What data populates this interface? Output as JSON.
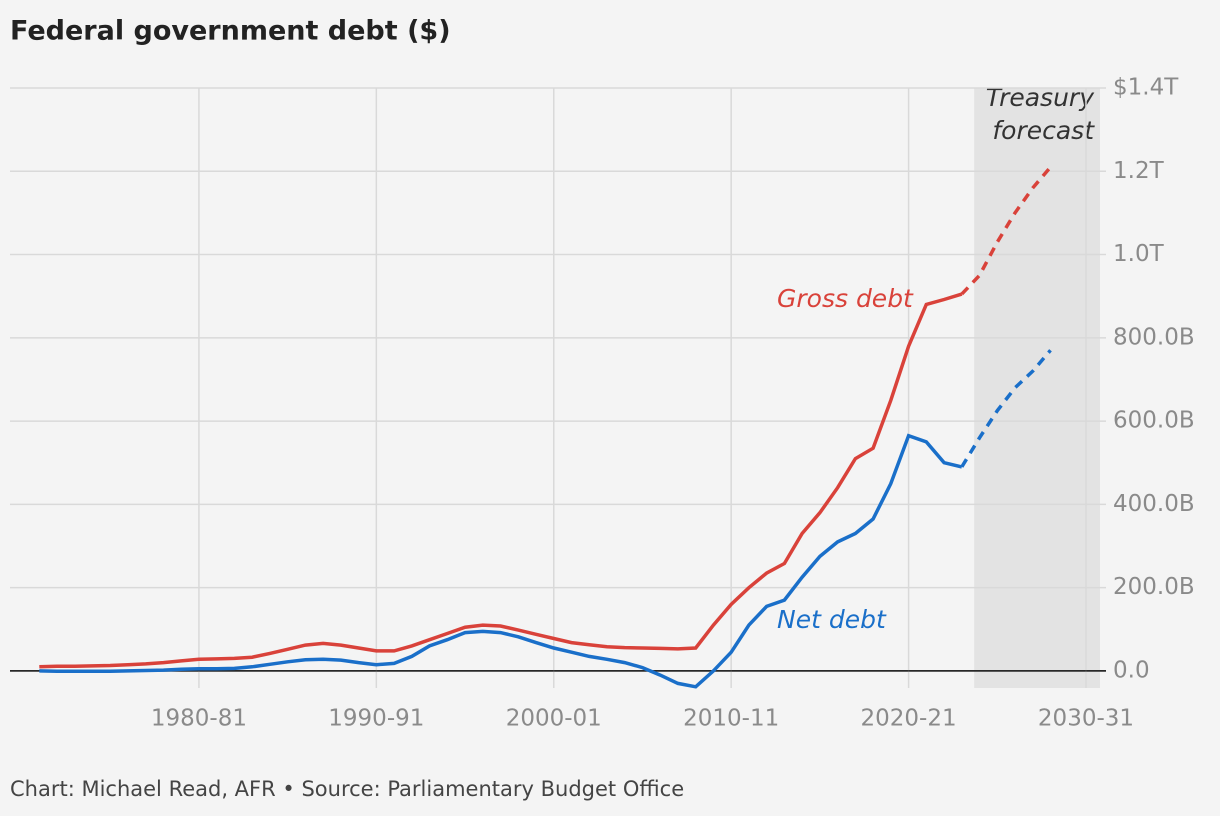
{
  "chart_data": {
    "type": "line",
    "title": "Federal government debt ($)",
    "source": "Chart: Michael Read, AFR • Source: Parliamentary Budget Office",
    "x": [
      1971,
      1972,
      1973,
      1974,
      1975,
      1976,
      1977,
      1978,
      1979,
      1980,
      1981,
      1982,
      1983,
      1984,
      1985,
      1986,
      1987,
      1988,
      1989,
      1990,
      1991,
      1992,
      1993,
      1994,
      1995,
      1996,
      1997,
      1998,
      1999,
      2000,
      2001,
      2002,
      2003,
      2004,
      2005,
      2006,
      2007,
      2008,
      2009,
      2010,
      2011,
      2012,
      2013,
      2014,
      2015,
      2016,
      2017,
      2018,
      2019,
      2020,
      2021,
      2022,
      2023,
      2024,
      2025,
      2026,
      2027,
      2028
    ],
    "series": [
      {
        "name": "Gross debt",
        "color": "#d9423a",
        "dashed": false,
        "values": [
          10,
          11,
          11,
          12,
          13,
          15,
          17,
          20,
          24,
          28,
          29,
          30,
          33,
          42,
          52,
          62,
          66,
          62,
          55,
          48,
          48,
          60,
          75,
          90,
          105,
          110,
          108,
          98,
          88,
          78,
          68,
          63,
          58,
          56,
          55,
          54,
          53,
          55,
          110,
          160,
          200,
          235,
          258,
          330,
          380,
          440,
          510,
          535,
          650,
          780,
          880,
          892,
          905,
          null,
          null,
          null,
          null,
          null
        ]
      },
      {
        "color": "#d9423a",
        "dashed": true,
        "values": [
          null,
          null,
          null,
          null,
          null,
          null,
          null,
          null,
          null,
          null,
          null,
          null,
          null,
          null,
          null,
          null,
          null,
          null,
          null,
          null,
          null,
          null,
          null,
          null,
          null,
          null,
          null,
          null,
          null,
          null,
          null,
          null,
          null,
          null,
          null,
          null,
          null,
          null,
          null,
          null,
          null,
          null,
          null,
          null,
          null,
          null,
          null,
          null,
          null,
          null,
          null,
          null,
          905,
          950,
          1030,
          1100,
          1160,
          1210
        ]
      },
      {
        "name": "Net debt",
        "color": "#1a6fc9",
        "dashed": false,
        "values": [
          0,
          -1,
          -1,
          -1,
          -1,
          0,
          1,
          2,
          4,
          5,
          5,
          6,
          10,
          16,
          22,
          27,
          28,
          26,
          20,
          15,
          18,
          35,
          60,
          75,
          92,
          95,
          92,
          82,
          68,
          55,
          45,
          35,
          28,
          20,
          8,
          -10,
          -30,
          -38,
          0,
          45,
          110,
          155,
          170,
          225,
          275,
          310,
          330,
          365,
          450,
          565,
          550,
          500,
          490,
          null,
          null,
          null,
          null,
          null
        ]
      },
      {
        "color": "#1a6fc9",
        "dashed": true,
        "values": [
          null,
          null,
          null,
          null,
          null,
          null,
          null,
          null,
          null,
          null,
          null,
          null,
          null,
          null,
          null,
          null,
          null,
          null,
          null,
          null,
          null,
          null,
          null,
          null,
          null,
          null,
          null,
          null,
          null,
          null,
          null,
          null,
          null,
          null,
          null,
          null,
          null,
          null,
          null,
          null,
          null,
          null,
          null,
          null,
          null,
          null,
          null,
          null,
          null,
          null,
          null,
          null,
          490,
          560,
          625,
          680,
          720,
          770
        ]
      }
    ],
    "xlim": [
      1969.35,
      2030.79
    ],
    "ylim": [
      -41,
      1400
    ],
    "xticks": [
      {
        "value": 1980,
        "label": "1980-81"
      },
      {
        "value": 1990,
        "label": "1990-91"
      },
      {
        "value": 2000,
        "label": "2000-01"
      },
      {
        "value": 2010,
        "label": "2010-11"
      },
      {
        "value": 2020,
        "label": "2020-21"
      },
      {
        "value": 2030,
        "label": "2030-31"
      }
    ],
    "yticks": [
      {
        "value": 0,
        "label": "0.0"
      },
      {
        "value": 200,
        "label": "200.0B"
      },
      {
        "value": 400,
        "label": "400.0B"
      },
      {
        "value": 600,
        "label": "600.0B"
      },
      {
        "value": 800,
        "label": "800.0B"
      },
      {
        "value": 1000,
        "label": "1.0T"
      },
      {
        "value": 1200,
        "label": "1.2T"
      },
      {
        "value": 1400,
        "label": "$1.4T"
      }
    ],
    "grid": true,
    "shade_xlim": [
      2023.7,
      2030.79
    ],
    "shade_label": [
      "Treasury",
      "forecast"
    ]
  }
}
